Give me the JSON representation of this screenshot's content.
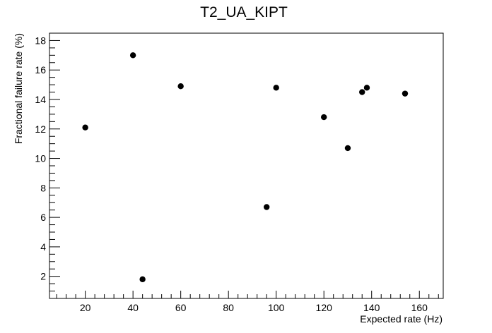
{
  "chart_data": {
    "type": "scatter",
    "title": "T2_UA_KIPT",
    "xlabel": "Expected rate (Hz)",
    "ylabel": "Fractional failure rate (%)",
    "xlim": [
      5,
      170
    ],
    "ylim": [
      0.5,
      18.5
    ],
    "x_ticks": [
      20,
      40,
      60,
      80,
      100,
      120,
      140,
      160
    ],
    "y_ticks": [
      2,
      4,
      6,
      8,
      10,
      12,
      14,
      16,
      18
    ],
    "grid": false,
    "marker_color": "#000000",
    "points": [
      {
        "x": 20,
        "y": 12.1
      },
      {
        "x": 40,
        "y": 17.0
      },
      {
        "x": 44,
        "y": 1.8
      },
      {
        "x": 60,
        "y": 14.9
      },
      {
        "x": 96,
        "y": 6.7
      },
      {
        "x": 100,
        "y": 14.8
      },
      {
        "x": 120,
        "y": 12.8
      },
      {
        "x": 130,
        "y": 10.7
      },
      {
        "x": 136,
        "y": 14.5
      },
      {
        "x": 138,
        "y": 14.8
      },
      {
        "x": 154,
        "y": 14.4
      }
    ]
  }
}
